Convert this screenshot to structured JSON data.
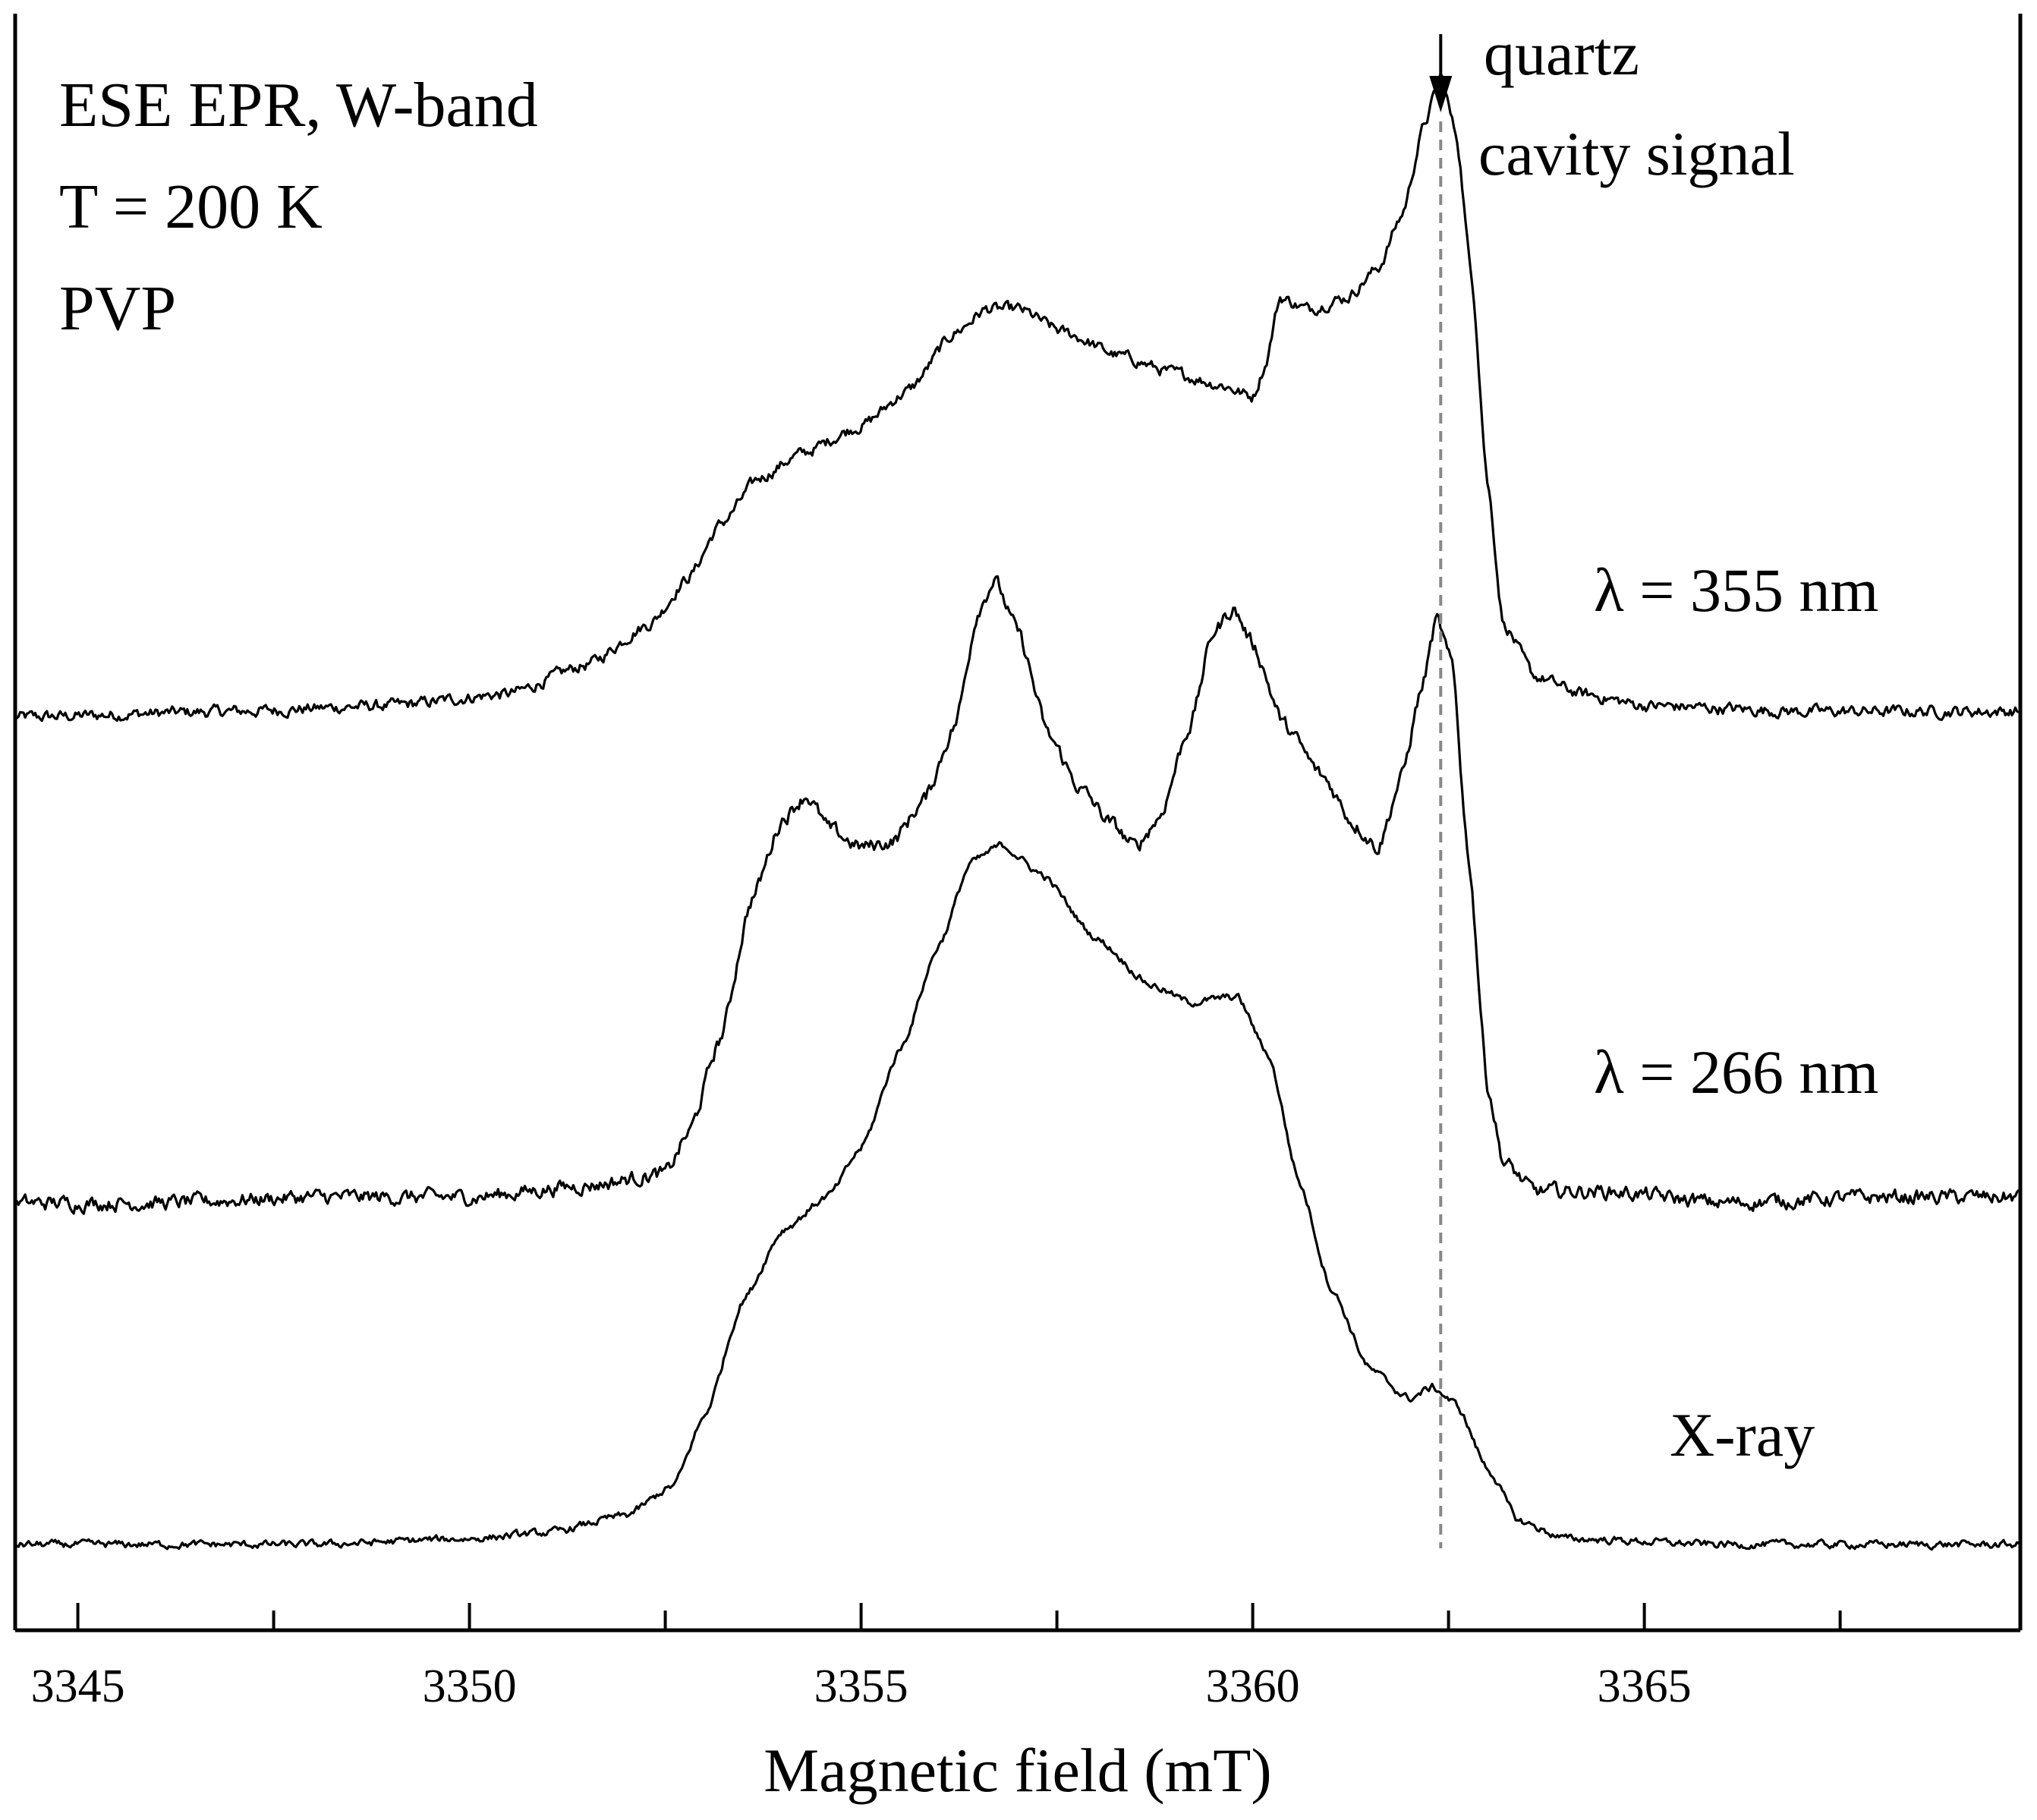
{
  "chart_data": {
    "type": "line",
    "xlabel": "Magnetic field (mT)",
    "ylabel": "",
    "xlim": [
      3344.2,
      3369.8
    ],
    "x_ticks": [
      "3345",
      "3350",
      "3355",
      "3360",
      "3365"
    ],
    "grid": false,
    "legend": "none",
    "info_lines": [
      "ESE EPR, W-band",
      "T = 200 K",
      "PVP"
    ],
    "annotation": {
      "lines": [
        "quartz",
        "cavity signal"
      ],
      "x": 3362.4,
      "style": "dashed vertical line with downward arrow"
    },
    "y_units": "arbitrary (traces vertically offset)",
    "series": [
      {
        "name": "λ = 355 nm",
        "offset": 2,
        "noise": 0.008,
        "points": [
          [
            3344.2,
            0.0
          ],
          [
            3347.0,
            0.01
          ],
          [
            3349.0,
            0.02
          ],
          [
            3350.5,
            0.04
          ],
          [
            3351.5,
            0.09
          ],
          [
            3352.3,
            0.16
          ],
          [
            3352.8,
            0.24
          ],
          [
            3353.2,
            0.33
          ],
          [
            3353.7,
            0.41
          ],
          [
            3354.2,
            0.45
          ],
          [
            3355.0,
            0.5
          ],
          [
            3355.6,
            0.56
          ],
          [
            3356.2,
            0.66
          ],
          [
            3356.6,
            0.7
          ],
          [
            3357.0,
            0.7
          ],
          [
            3357.6,
            0.66
          ],
          [
            3358.3,
            0.62
          ],
          [
            3359.0,
            0.59
          ],
          [
            3359.6,
            0.57
          ],
          [
            3360.0,
            0.55
          ],
          [
            3360.15,
            0.6
          ],
          [
            3360.35,
            0.72
          ],
          [
            3360.7,
            0.7
          ],
          [
            3361.2,
            0.72
          ],
          [
            3361.6,
            0.77
          ],
          [
            3361.9,
            0.86
          ],
          [
            3362.2,
            1.02
          ],
          [
            3362.4,
            1.1
          ],
          [
            3362.6,
            1.0
          ],
          [
            3362.8,
            0.75
          ],
          [
            3363.0,
            0.4
          ],
          [
            3363.2,
            0.16
          ],
          [
            3363.6,
            0.07
          ],
          [
            3364.2,
            0.04
          ],
          [
            3365.0,
            0.02
          ],
          [
            3367.0,
            0.01
          ],
          [
            3369.8,
            0.01
          ]
        ]
      },
      {
        "name": "λ = 266 nm",
        "offset": 1,
        "noise": 0.01,
        "points": [
          [
            3344.2,
            0.0
          ],
          [
            3346.0,
            0.0
          ],
          [
            3348.0,
            0.01
          ],
          [
            3350.0,
            0.01
          ],
          [
            3351.5,
            0.03
          ],
          [
            3352.5,
            0.05
          ],
          [
            3352.8,
            0.12
          ],
          [
            3353.2,
            0.28
          ],
          [
            3353.6,
            0.52
          ],
          [
            3354.0,
            0.66
          ],
          [
            3354.3,
            0.7
          ],
          [
            3354.6,
            0.64
          ],
          [
            3355.0,
            0.61
          ],
          [
            3355.4,
            0.62
          ],
          [
            3355.8,
            0.69
          ],
          [
            3356.2,
            0.82
          ],
          [
            3356.5,
            1.02
          ],
          [
            3356.7,
            1.07
          ],
          [
            3357.0,
            0.98
          ],
          [
            3357.4,
            0.8
          ],
          [
            3357.8,
            0.71
          ],
          [
            3358.2,
            0.65
          ],
          [
            3358.5,
            0.61
          ],
          [
            3358.8,
            0.66
          ],
          [
            3359.2,
            0.82
          ],
          [
            3359.5,
            0.98
          ],
          [
            3359.75,
            1.02
          ],
          [
            3360.0,
            0.96
          ],
          [
            3360.4,
            0.82
          ],
          [
            3360.9,
            0.73
          ],
          [
            3361.3,
            0.65
          ],
          [
            3361.6,
            0.61
          ],
          [
            3361.9,
            0.73
          ],
          [
            3362.15,
            0.88
          ],
          [
            3362.35,
            1.0
          ],
          [
            3362.55,
            0.92
          ],
          [
            3362.75,
            0.6
          ],
          [
            3363.0,
            0.2
          ],
          [
            3363.2,
            0.07
          ],
          [
            3363.6,
            0.02
          ],
          [
            3364.5,
            0.02
          ],
          [
            3366.0,
            0.0
          ],
          [
            3368.0,
            0.01
          ],
          [
            3369.8,
            0.01
          ]
        ]
      },
      {
        "name": "X-ray",
        "offset": 0,
        "noise": 0.005,
        "points": [
          [
            3344.2,
            0.0
          ],
          [
            3348.0,
            0.0
          ],
          [
            3350.0,
            0.01
          ],
          [
            3351.0,
            0.02
          ],
          [
            3352.0,
            0.05
          ],
          [
            3352.6,
            0.1
          ],
          [
            3353.0,
            0.22
          ],
          [
            3353.5,
            0.42
          ],
          [
            3354.0,
            0.54
          ],
          [
            3354.6,
            0.6
          ],
          [
            3355.0,
            0.68
          ],
          [
            3355.5,
            0.85
          ],
          [
            3356.0,
            1.03
          ],
          [
            3356.4,
            1.17
          ],
          [
            3356.8,
            1.2
          ],
          [
            3357.3,
            1.15
          ],
          [
            3358.0,
            1.04
          ],
          [
            3358.7,
            0.96
          ],
          [
            3359.2,
            0.93
          ],
          [
            3359.8,
            0.94
          ],
          [
            3360.2,
            0.84
          ],
          [
            3360.6,
            0.62
          ],
          [
            3361.0,
            0.44
          ],
          [
            3361.5,
            0.3
          ],
          [
            3362.0,
            0.25
          ],
          [
            3362.3,
            0.27
          ],
          [
            3362.6,
            0.24
          ],
          [
            3363.0,
            0.13
          ],
          [
            3363.4,
            0.04
          ],
          [
            3364.0,
            0.01
          ],
          [
            3366.0,
            0.0
          ],
          [
            3369.8,
            0.0
          ]
        ]
      }
    ]
  }
}
